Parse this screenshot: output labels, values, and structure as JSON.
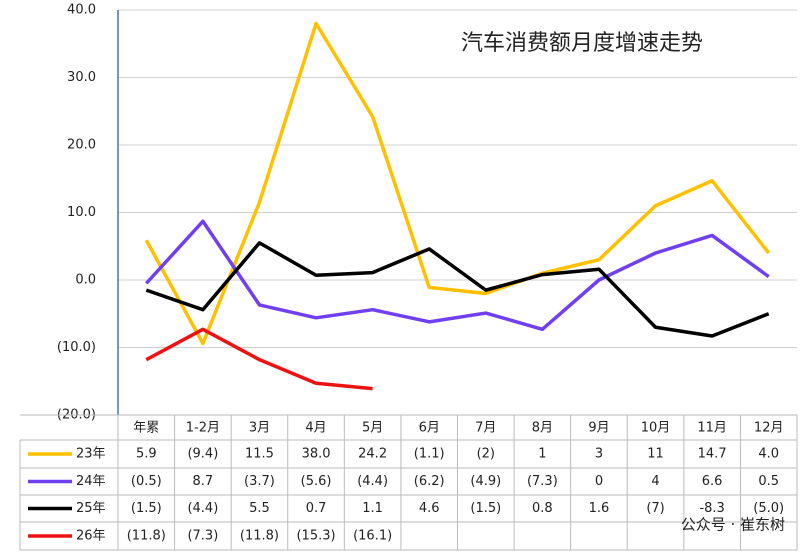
{
  "chart_data": {
    "type": "line",
    "title": "汽车消费额月度增速走势",
    "watermark": "公众号 · 崔东树",
    "categories": [
      "年累",
      "1-2月",
      "3月",
      "4月",
      "5月",
      "6月",
      "7月",
      "8月",
      "9月",
      "10月",
      "11月",
      "12月"
    ],
    "series": [
      {
        "name": "23年",
        "color": "#FFC000",
        "values": [
          5.9,
          -9.4,
          11.5,
          38.0,
          24.2,
          -1.1,
          -2,
          1,
          3,
          11,
          14.7,
          4.0
        ],
        "value_labels": [
          "5.9",
          "(9.4)",
          "11.5",
          "38.0",
          "24.2",
          "(1.1)",
          "(2)",
          "1",
          "3",
          "11",
          "14.7",
          "4.0"
        ]
      },
      {
        "name": "24年",
        "color": "#7040F0",
        "values": [
          -0.5,
          8.7,
          -3.7,
          -5.6,
          -4.4,
          -6.2,
          -4.9,
          -7.3,
          0,
          4,
          6.6,
          0.5
        ],
        "value_labels": [
          "(0.5)",
          "8.7",
          "(3.7)",
          "(5.6)",
          "(4.4)",
          "(6.2)",
          "(4.9)",
          "(7.3)",
          "0",
          "4",
          "6.6",
          "0.5"
        ]
      },
      {
        "name": "25年",
        "color": "#000000",
        "values": [
          -1.5,
          -4.4,
          5.5,
          0.7,
          1.1,
          4.6,
          -1.5,
          0.8,
          1.6,
          -7,
          -8.3,
          -5.0
        ],
        "value_labels": [
          "(1.5)",
          "(4.4)",
          "5.5",
          "0.7",
          "1.1",
          "4.6",
          "(1.5)",
          "0.8",
          "1.6",
          "(7)",
          "-8.3",
          "(5.0)"
        ]
      },
      {
        "name": "26年",
        "color": "#EE1111",
        "values": [
          -11.8,
          -7.3,
          -11.8,
          -15.3,
          -16.1,
          null,
          null,
          null,
          null,
          null,
          null,
          null
        ],
        "value_labels": [
          "(11.8)",
          "(7.3)",
          "(11.8)",
          "(15.3)",
          "(16.1)",
          null,
          null,
          null,
          null,
          null,
          null,
          null
        ]
      }
    ],
    "ylim": [
      -20,
      40
    ],
    "yticks": [
      {
        "value": 40,
        "label": "40.0"
      },
      {
        "value": 30,
        "label": "30.0"
      },
      {
        "value": 20,
        "label": "20.0"
      },
      {
        "value": 10,
        "label": "10.0"
      },
      {
        "value": 0,
        "label": "0.0"
      },
      {
        "value": -10,
        "label": "(10.0)"
      },
      {
        "value": -20,
        "label": "(20.0)"
      }
    ],
    "negative_tick_color": "#FF0000",
    "grid": true
  }
}
